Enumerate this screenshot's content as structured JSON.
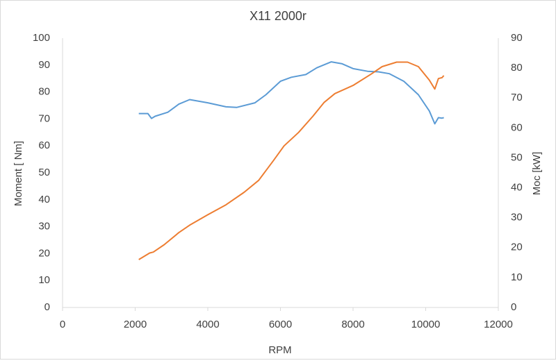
{
  "chart_data": {
    "type": "line",
    "title": "X11 2000r",
    "x_label": "RPM",
    "y_label": "Moment [ Nm]",
    "y2_label": "Moc [kW]",
    "xlim": [
      0,
      12000
    ],
    "xticks": [
      0,
      2000,
      4000,
      6000,
      8000,
      10000,
      12000
    ],
    "ylim": [
      0,
      100
    ],
    "yticks": [
      0,
      10,
      20,
      30,
      40,
      50,
      60,
      70,
      80,
      90,
      100
    ],
    "y2lim": [
      0,
      90
    ],
    "y2ticks": [
      0,
      10,
      20,
      30,
      40,
      50,
      60,
      70,
      80,
      90
    ],
    "grid": false,
    "series": [
      {
        "color": "#5b9bd5",
        "x": [
          2100,
          2350,
          2450,
          2550,
          2900,
          3200,
          3500,
          4000,
          4500,
          4800,
          5300,
          5600,
          6000,
          6300,
          6700,
          7000,
          7400,
          7700,
          8000,
          8400,
          8700,
          9000,
          9400,
          9800,
          10100,
          10250,
          10350,
          10450,
          10500
        ],
        "values": [
          72,
          72,
          70.2,
          71,
          72.5,
          75.5,
          77.2,
          76,
          74.5,
          74.3,
          76,
          79,
          84,
          85.5,
          86.5,
          89,
          91.2,
          90.5,
          88.7,
          87.7,
          87.5,
          86.8,
          84,
          79,
          73,
          68.2,
          70.5,
          70.3,
          70.5
        ]
      },
      {
        "color": "#ed7d31",
        "axis": "y2",
        "x": [
          2100,
          2400,
          2500,
          2800,
          3200,
          3500,
          4000,
          4500,
          5000,
          5400,
          5800,
          6100,
          6500,
          6900,
          7200,
          7500,
          8000,
          8500,
          8800,
          9200,
          9500,
          9800,
          10100,
          10250,
          10350,
          10450,
          10500
        ],
        "values": [
          16,
          18.2,
          18.5,
          21,
          25,
          27.5,
          31,
          34.3,
          38.5,
          42.5,
          49,
          54,
          58.5,
          64,
          68.5,
          71.5,
          74.2,
          78,
          80.5,
          82,
          82,
          80.5,
          76,
          73,
          76.5,
          76.8,
          77.5
        ]
      }
    ]
  }
}
